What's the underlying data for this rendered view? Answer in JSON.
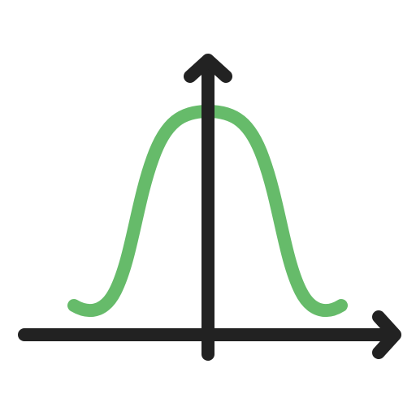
{
  "icon": {
    "name": "bell-curve-icon",
    "description_colors": {
      "axis": "#222222",
      "curve": "#66bb6a"
    }
  }
}
